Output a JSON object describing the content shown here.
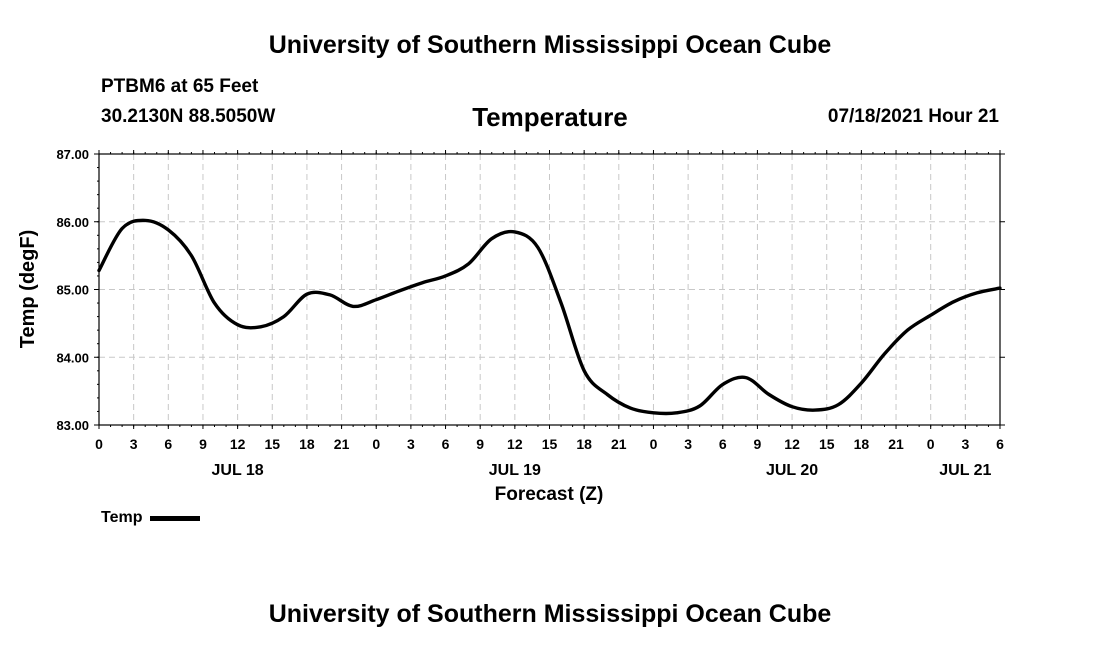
{
  "header": {
    "top_title": "University of Southern Mississippi Ocean Cube",
    "station": "PTBM6 at 65 Feet",
    "coords": "30.2130N  88.5050W",
    "chart_title": "Temperature",
    "timestamp": "07/18/2021 Hour 21"
  },
  "footer": {
    "bottom_title": "University of Southern Mississippi Ocean Cube"
  },
  "legend": {
    "label": "Temp"
  },
  "chart_data": {
    "type": "line",
    "title": "Temperature",
    "xlabel": "Forecast (Z)",
    "ylabel": "Temp (degF)",
    "ylim": [
      83.0,
      87.0
    ],
    "y_ticks": [
      "83.00",
      "84.00",
      "85.00",
      "86.00",
      "87.00"
    ],
    "xlim_hours": [
      0,
      78
    ],
    "x_tick_labels": [
      "0",
      "3",
      "6",
      "9",
      "12",
      "15",
      "18",
      "21",
      "0",
      "3",
      "6",
      "9",
      "12",
      "15",
      "18",
      "21",
      "0",
      "3",
      "6",
      "9",
      "12",
      "15",
      "18",
      "21",
      "0",
      "3",
      "6"
    ],
    "date_labels": [
      {
        "label": "JUL 18",
        "hour": 12
      },
      {
        "label": "JUL 19",
        "hour": 36
      },
      {
        "label": "JUL 20",
        "hour": 60
      },
      {
        "label": "JUL 21",
        "hour": 75
      }
    ],
    "grid": true,
    "series": [
      {
        "name": "Temp",
        "color": "#000000",
        "x": [
          0,
          2,
          4,
          6,
          8,
          10,
          12,
          14,
          16,
          18,
          20,
          22,
          24,
          26,
          28,
          30,
          32,
          34,
          36,
          38,
          40,
          42,
          44,
          46,
          48,
          50,
          52,
          54,
          56,
          58,
          60,
          62,
          64,
          66,
          68,
          70,
          72,
          74,
          76,
          78
        ],
        "values": [
          85.28,
          85.9,
          86.02,
          85.88,
          85.5,
          84.8,
          84.48,
          84.45,
          84.6,
          84.93,
          84.92,
          84.75,
          84.85,
          84.98,
          85.1,
          85.2,
          85.38,
          85.75,
          85.85,
          85.62,
          84.8,
          83.8,
          83.45,
          83.25,
          83.18,
          83.18,
          83.28,
          83.6,
          83.7,
          83.45,
          83.27,
          83.22,
          83.3,
          83.62,
          84.05,
          84.4,
          84.62,
          84.82,
          84.95,
          85.02
        ]
      }
    ]
  }
}
